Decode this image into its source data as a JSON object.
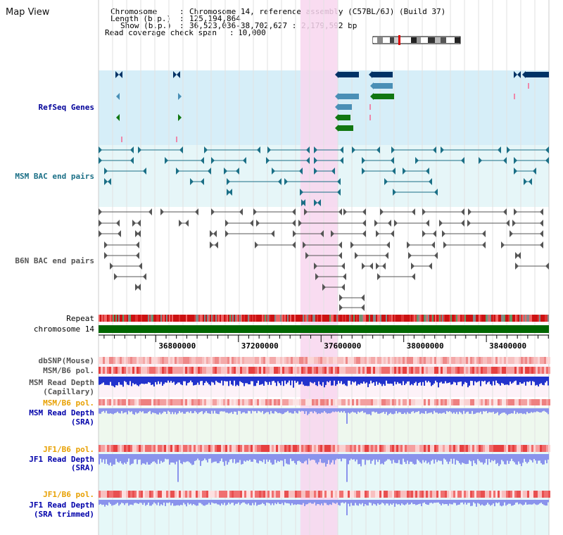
{
  "title": "Map View",
  "info": {
    "chromosome_label": "Chromosome",
    "chromosome_value": "Chromosome 14, reference assembly (C57BL/6J) (Build 37)",
    "length_label": "Length (b.p.)",
    "length_value": "125,194,864",
    "show_label": "Show (b.p.)",
    "show_value": "36,523,036-38,702,627 : 2,179,592 bp",
    "span_label": "Read coverage check span",
    "span_value": "10,000"
  },
  "view": {
    "start": 36523036,
    "end": 38702627
  },
  "axis": {
    "ticks": [
      36800000,
      37200000,
      37600000,
      38000000,
      38400000
    ]
  },
  "highlight": {
    "start": 37500000,
    "end": 37680000
  },
  "colors": {
    "refseq_bg": "#d6eef8",
    "msm_bac_bg": "#e6f6f8",
    "b6n_bac_bg": "#ffffff",
    "highlight": "#f8d6ee",
    "msm_sra_bg": "#eef8ee",
    "jf1_bg": "#e6f8f8",
    "gene_dark": "#003366",
    "gene_mid": "#4a8fb6",
    "gene_green": "#117711",
    "msm_bac": "#1a6f86",
    "b6n_bac": "#555555",
    "chrom_bar": "#006600",
    "depth_capillary": "#2233cc",
    "depth_sra": "#8a93ec"
  },
  "tracks": {
    "refseq": "RefSeq Genes",
    "msm_bac": "MSM BAC end pairs",
    "b6n_bac": "B6N BAC end pairs",
    "repeat": "Repeat",
    "chromosome": "chromosome 14",
    "dbsnp": "dbSNP(Mouse)",
    "msm_pol": "MSM/B6 pol.",
    "msm_depth_cap_1": "MSM Read Depth",
    "msm_depth_cap_2": "(Capillary)",
    "msm_pol_2": "MSM/B6 pol.",
    "msm_depth_sra_1": "MSM Read Depth",
    "msm_depth_sra_2": "(SRA)",
    "jf1_pol": "JF1/B6 pol.",
    "jf1_depth_1": "JF1 Read Depth",
    "jf1_depth_2": "(SRA)",
    "jf1_pol_2": "JF1/B6 pol.",
    "jf1_trim_1": "JF1 Read Depth",
    "jf1_trim_2": "(SRA trimmed)"
  }
}
